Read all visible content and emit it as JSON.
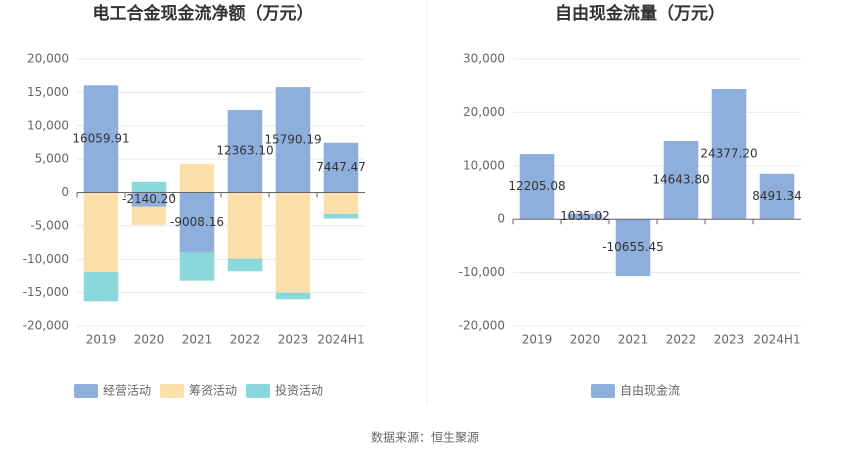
{
  "source": "数据来源：恒生聚源",
  "chart_data": [
    {
      "type": "bar",
      "stacked": true,
      "title": "电工合金现金流净额（万元）",
      "categories": [
        "2019",
        "2020",
        "2021",
        "2022",
        "2023",
        "2024H1"
      ],
      "series": [
        {
          "name": "经营活动",
          "color": "#8eaedc",
          "values": [
            16059.91,
            -2140.2,
            -9008.16,
            12363.1,
            15790.19,
            7447.47
          ],
          "value_labels": [
            "16059.91",
            "-2140.20",
            "-9008.16",
            "12363.10",
            "15790.19",
            "7447.47"
          ]
        },
        {
          "name": "筹资活动",
          "color": "#fddfa9",
          "values": [
            -11900,
            -2700,
            4300,
            -9900,
            -15000,
            -3200
          ]
        },
        {
          "name": "投资活动",
          "color": "#8ad8dc",
          "values": [
            -4400,
            1600,
            -4200,
            -1900,
            -1000,
            -700
          ]
        }
      ],
      "ylim": [
        -20000,
        20000
      ],
      "yticks": [
        {
          "value": -20000,
          "label": "-20,000"
        },
        {
          "value": -15000,
          "label": "-15,000"
        },
        {
          "value": -10000,
          "label": "-10,000"
        },
        {
          "value": -5000,
          "label": "-5,000"
        },
        0,
        {
          "value": 5000,
          "label": "5,000"
        },
        {
          "value": 10000,
          "label": "10,000"
        },
        {
          "value": 15000,
          "label": "15,000"
        },
        {
          "value": 20000,
          "label": "20,000"
        }
      ],
      "grid": true,
      "legend": "bottom"
    },
    {
      "type": "bar",
      "title": "自由现金流量（万元）",
      "categories": [
        "2019",
        "2020",
        "2021",
        "2022",
        "2023",
        "2024H1"
      ],
      "series": [
        {
          "name": "自由现金流",
          "color": "#8eaedc",
          "values": [
            12205.08,
            1035.02,
            -10655.45,
            14643.8,
            24377.2,
            8491.34
          ],
          "value_labels": [
            "12205.08",
            "1035.02",
            "-10655.45",
            "14643.80",
            "24377.20",
            "8491.34"
          ]
        }
      ],
      "ylim": [
        -20000,
        30000
      ],
      "yticks": [
        {
          "value": -20000,
          "label": "-20,000"
        },
        {
          "value": -10000,
          "label": "-10,000"
        },
        0,
        {
          "value": 10000,
          "label": "10,000"
        },
        {
          "value": 20000,
          "label": "20,000"
        },
        {
          "value": 30000,
          "label": "30,000"
        }
      ],
      "grid": true,
      "legend": "bottom"
    }
  ]
}
